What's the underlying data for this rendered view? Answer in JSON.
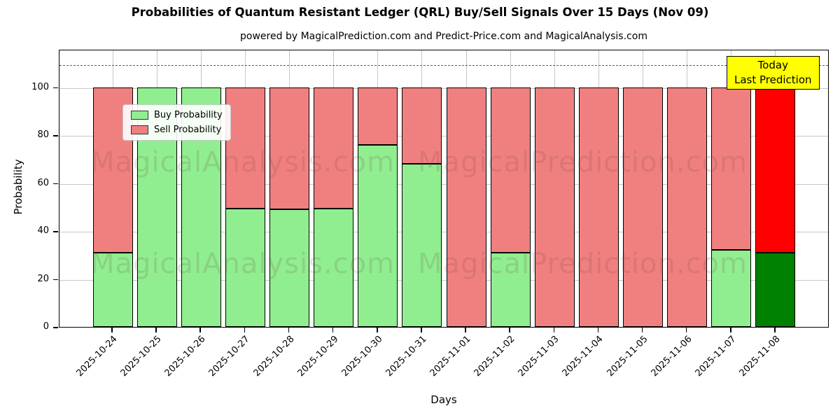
{
  "title": "Probabilities of Quantum Resistant Ledger (QRL) Buy/Sell Signals Over 15 Days (Nov 09)",
  "subtitle": "powered by MagicalPrediction.com and Predict-Price.com and MagicalAnalysis.com",
  "legend": [
    {
      "label": "Buy Probability",
      "color": "#90ee90"
    },
    {
      "label": "Sell Probability",
      "color": "#f08080"
    }
  ],
  "annotation": {
    "line1": "Today",
    "line2": "Last Prediction",
    "bg": "#ffff00"
  },
  "watermarks": {
    "left": "MagicalAnalysis.com",
    "right": "MagicalPrediction.com"
  },
  "chart_data": {
    "type": "bar",
    "stacked": true,
    "title": "Probabilities of Quantum Resistant Ledger (QRL) Buy/Sell Signals Over 15 Days (Nov 09)",
    "xlabel": "Days",
    "ylabel": "Probability",
    "ylim": [
      0,
      116
    ],
    "yticks": [
      0,
      20,
      40,
      60,
      80,
      100
    ],
    "grid": true,
    "legend_position": "upper-left",
    "dashed_line_y": 110,
    "categories": [
      "2025-10-24",
      "2025-10-25",
      "2025-10-26",
      "2025-10-27",
      "2025-10-28",
      "2025-10-29",
      "2025-10-30",
      "2025-10-31",
      "2025-11-01",
      "2025-11-02",
      "2025-11-03",
      "2025-11-04",
      "2025-11-05",
      "2025-11-06",
      "2025-11-07",
      "2025-11-08"
    ],
    "series": [
      {
        "name": "Buy Probability",
        "color": "#90ee90",
        "values": [
          31,
          100,
          100,
          49.5,
          49,
          49.5,
          76,
          68,
          0,
          31,
          0,
          0,
          0,
          0,
          32,
          31
        ]
      },
      {
        "name": "Sell Probability",
        "color": "#f08080",
        "values": [
          69,
          0,
          0,
          50.5,
          51,
          50.5,
          24,
          32,
          100,
          69,
          100,
          100,
          100,
          100,
          68,
          69
        ]
      }
    ],
    "today_index": 15,
    "today_colors": {
      "buy": "#008000",
      "sell": "#ff0000"
    }
  }
}
